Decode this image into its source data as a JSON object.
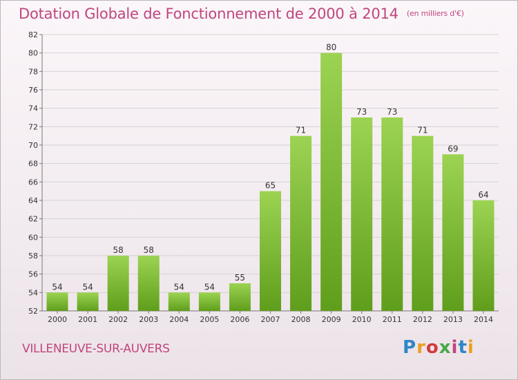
{
  "header": {
    "title": "Dotation Globale de Fonctionnement de 2000 à 2014",
    "unit": "(en milliers d'€)"
  },
  "footer": {
    "commune": "VILLENEUVE-SUR-AUVERS",
    "logo_text": "Proxiti",
    "logo_colors": [
      "#2e86c8",
      "#e8a020",
      "#d23c3c",
      "#4aa84a",
      "#c0457e",
      "#2e86c8",
      "#e8a020"
    ]
  },
  "colors": {
    "title": "#c0457e",
    "bar_top": "#9cd352",
    "bar_bottom": "#5f9e1c",
    "grid": "#d3d3d3"
  },
  "chart_data": {
    "type": "bar",
    "title": "Dotation Globale de Fonctionnement de 2000 à 2014",
    "subtitle": "(en milliers d'€)",
    "xlabel": "",
    "ylabel": "",
    "categories": [
      "2000",
      "2001",
      "2002",
      "2003",
      "2004",
      "2005",
      "2006",
      "2007",
      "2008",
      "2009",
      "2010",
      "2011",
      "2012",
      "2013",
      "2014"
    ],
    "values": [
      54,
      54,
      58,
      58,
      54,
      54,
      55,
      65,
      71,
      80,
      73,
      73,
      71,
      69,
      64
    ],
    "ylim": [
      52,
      82
    ],
    "yticks": [
      52,
      54,
      56,
      58,
      60,
      62,
      64,
      66,
      68,
      70,
      72,
      74,
      76,
      78,
      80,
      82
    ],
    "grid": true,
    "legend": "none"
  }
}
